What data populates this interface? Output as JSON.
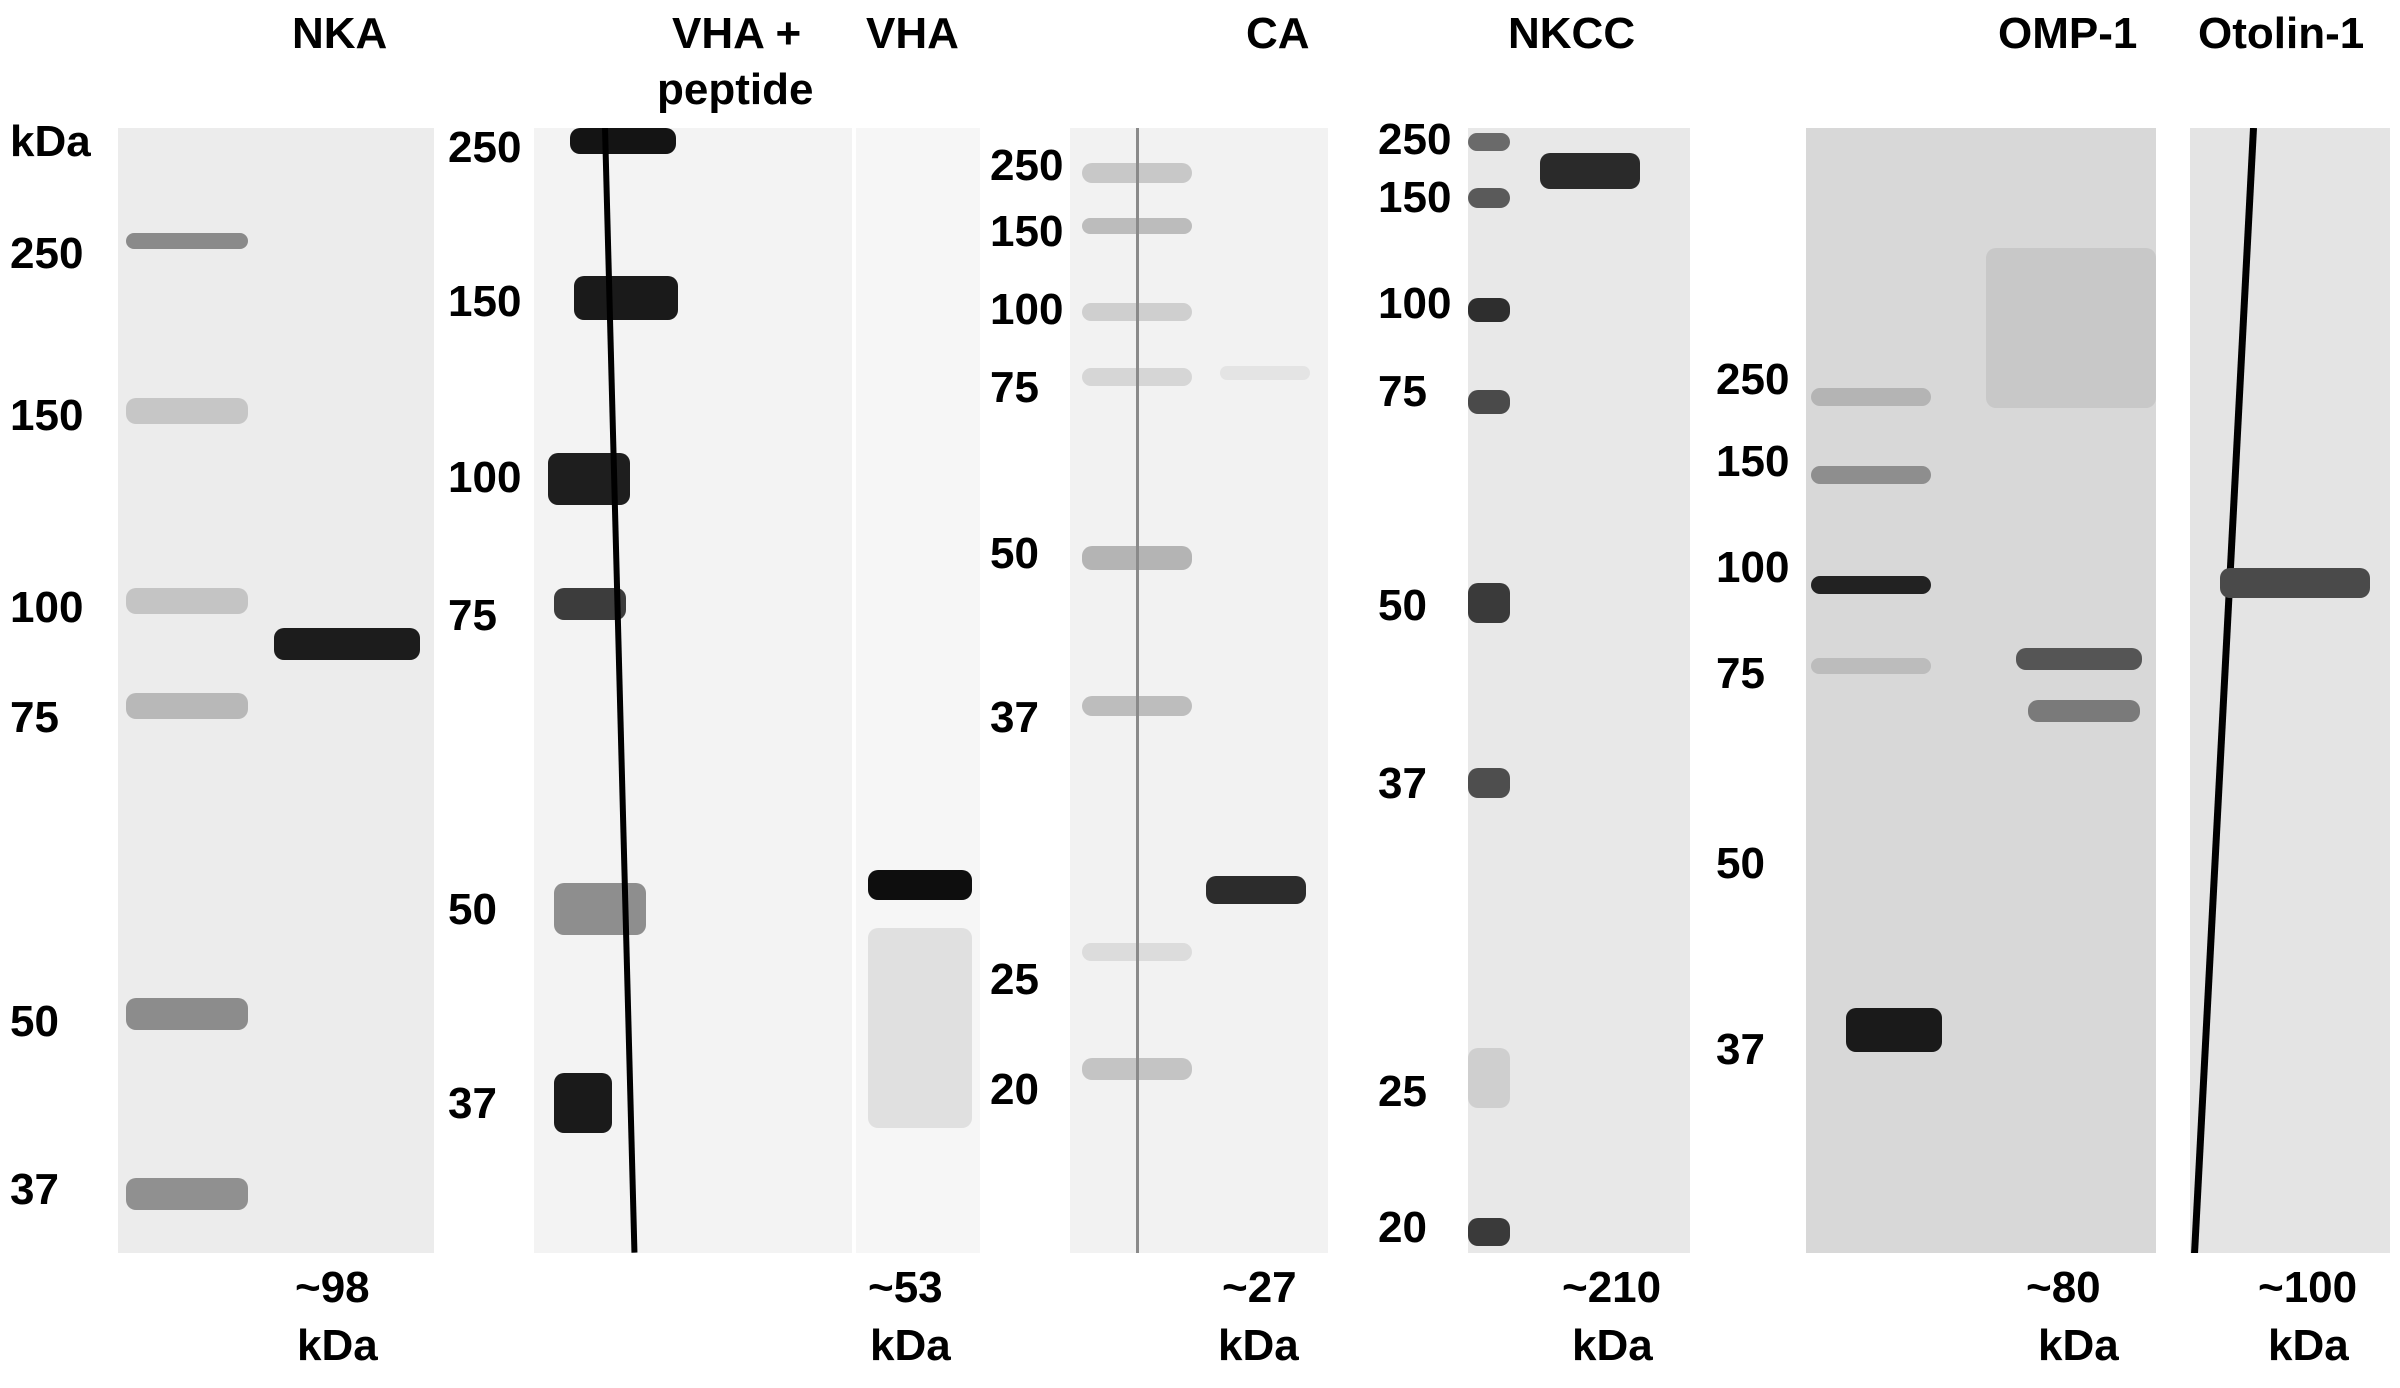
{
  "figure": {
    "kda_unit": "kDa",
    "panels": [
      {
        "id": "nka",
        "title": "NKA",
        "ladder": [
          "250",
          "150",
          "100",
          "75",
          "50",
          "37"
        ],
        "size_line1": "~98",
        "size_line2": "kDa"
      },
      {
        "id": "vha-peptide",
        "title_line1": "VHA +",
        "title_line2": "peptide",
        "ladder": [
          "250",
          "150",
          "100",
          "75",
          "50",
          "37"
        ]
      },
      {
        "id": "vha",
        "title": "VHA",
        "size_line1": "~53",
        "size_line2": "kDa"
      },
      {
        "id": "ca",
        "title": "CA",
        "ladder": [
          "250",
          "150",
          "100",
          "75",
          "50",
          "37",
          "25",
          "20"
        ],
        "size_line1": "~27",
        "size_line2": "kDa"
      },
      {
        "id": "nkcc",
        "title": "NKCC",
        "ladder": [
          "250",
          "150",
          "100",
          "75",
          "50",
          "37",
          "25",
          "20"
        ],
        "size_line1": "~210",
        "size_line2": "kDa"
      },
      {
        "id": "omp1",
        "title": "OMP-1",
        "ladder": [
          "250",
          "150",
          "100",
          "75",
          "50",
          "37"
        ],
        "size_line1": "~80",
        "size_line2": "kDa"
      },
      {
        "id": "otolin1",
        "title": "Otolin-1",
        "size_line1": "~100",
        "size_line2": "kDa"
      }
    ]
  }
}
